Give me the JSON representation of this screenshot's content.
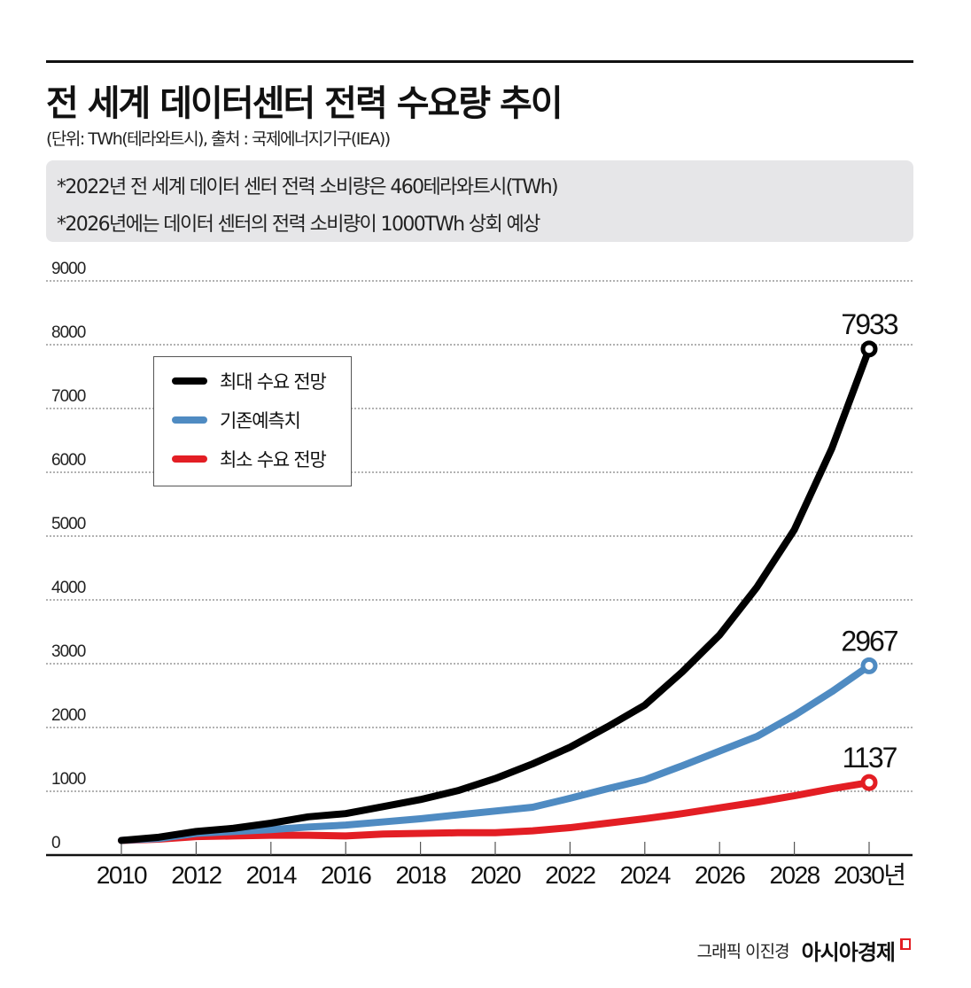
{
  "header": {
    "title": "전 세계 데이터센터 전력 수요량 추이",
    "subtitle": "(단위: TWh(테라와트시), 출처 : 국제에너지기구(IEA))"
  },
  "notes": [
    "*2022년 전 세계 데이터 센터 전력 소비량은 460테라와트시(TWh)",
    "*2026년에는 데이터 센터의 전력 소비량이 1000TWh 상회 예상"
  ],
  "footer": {
    "credit": "그래픽 이진경",
    "brand": "아시아경제",
    "brand_color": "#e31e24"
  },
  "chart_data": {
    "type": "line",
    "title": "전 세계 데이터센터 전력 수요량 추이",
    "xlabel": "",
    "ylabel": "",
    "x_unit_suffix": "년",
    "ylim": [
      0,
      9000
    ],
    "xlim": [
      2010,
      2030
    ],
    "grid": true,
    "legend": "top-left",
    "yticks": [
      0,
      1000,
      2000,
      3000,
      4000,
      5000,
      6000,
      7000,
      8000,
      9000
    ],
    "xticks": [
      2010,
      2012,
      2014,
      2016,
      2018,
      2020,
      2022,
      2024,
      2026,
      2028,
      2030
    ],
    "x": [
      2010,
      2011,
      2012,
      2013,
      2014,
      2015,
      2016,
      2017,
      2018,
      2019,
      2020,
      2021,
      2022,
      2023,
      2024,
      2025,
      2026,
      2027,
      2028,
      2029,
      2030
    ],
    "series": [
      {
        "name": "최대 수요 전망",
        "color": "#000000",
        "values": [
          230,
          280,
          370,
          420,
          500,
          600,
          650,
          760,
          870,
          1010,
          1200,
          1430,
          1690,
          2010,
          2350,
          2870,
          3450,
          4200,
          5100,
          6370,
          7933
        ],
        "end_label": "7933"
      },
      {
        "name": "기존예측치",
        "color": "#4f8bc2",
        "values": [
          230,
          260,
          340,
          370,
          400,
          440,
          470,
          520,
          570,
          630,
          690,
          750,
          890,
          1040,
          1180,
          1400,
          1630,
          1860,
          2190,
          2560,
          2967
        ],
        "end_label": "2967"
      },
      {
        "name": "최소 수요 전망",
        "color": "#e31e24",
        "values": [
          230,
          250,
          290,
          300,
          310,
          310,
          300,
          330,
          340,
          350,
          350,
          380,
          430,
          500,
          570,
          650,
          740,
          830,
          930,
          1040,
          1137
        ],
        "end_label": "1137"
      }
    ]
  }
}
